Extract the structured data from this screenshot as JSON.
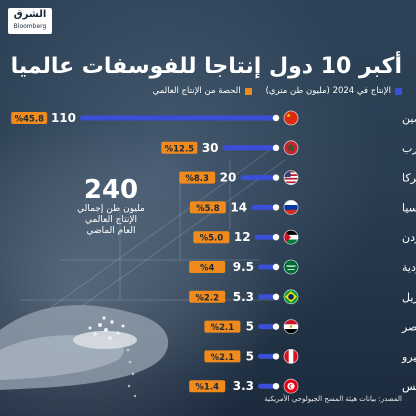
{
  "brand": {
    "ar": "الشرق",
    "en": "Bloomberg"
  },
  "title": "أكبر 10 دول إنتاجا للفوسفات عالميا",
  "legend": {
    "production": "الإنتاج في 2024 (مليون طن متري)",
    "share": "الحصة من الإنتاج العالمي"
  },
  "callout": {
    "value": "240",
    "caption_line1": "مليون طن إجمالي",
    "caption_line2": "الإنتاج العالمي",
    "caption_line3": "العام الماضي"
  },
  "source": "المصدر: بيانات هيئة المسح الجيولوجي الأمريكية",
  "colors": {
    "bar": "#3a4fd8",
    "share": "#f08a1c",
    "background": "#24374b"
  },
  "chart_data": {
    "type": "bar",
    "orientation": "horizontal",
    "title": "أكبر 10 دول إنتاجا للفوسفات عالميا",
    "xlim": [
      0,
      110
    ],
    "series": [
      {
        "name": "الإنتاج في 2024 (مليون طن متري)",
        "values": [
          110,
          30,
          20,
          14,
          12,
          9.5,
          5.3,
          5,
          5,
          3.3
        ],
        "labels": [
          "110",
          "30",
          "20",
          "14",
          "12",
          "9.5",
          "5.3",
          "5",
          "5",
          "3.3"
        ]
      },
      {
        "name": "الحصة من الإنتاج العالمي",
        "labels": [
          "%45.8",
          "%12.5",
          "%8.3",
          "%5.8",
          "%5.0",
          "%4",
          "%2.2",
          "%2.1",
          "%2.1",
          "%1.4"
        ]
      }
    ],
    "categories": [
      {
        "name": "الصين",
        "flag": "china-flag-icon"
      },
      {
        "name": "المغرب",
        "flag": "morocco-flag-icon"
      },
      {
        "name": "أميركا",
        "flag": "usa-flag-icon"
      },
      {
        "name": "روسيا",
        "flag": "russia-flag-icon"
      },
      {
        "name": "الأردن",
        "flag": "jordan-flag-icon"
      },
      {
        "name": "السعودية",
        "flag": "saudi-flag-icon"
      },
      {
        "name": "البرازيل",
        "flag": "brazil-flag-icon"
      },
      {
        "name": "مصر",
        "flag": "egypt-flag-icon"
      },
      {
        "name": "بيرو",
        "flag": "peru-flag-icon"
      },
      {
        "name": "تونس",
        "flag": "tunisia-flag-icon"
      }
    ]
  }
}
